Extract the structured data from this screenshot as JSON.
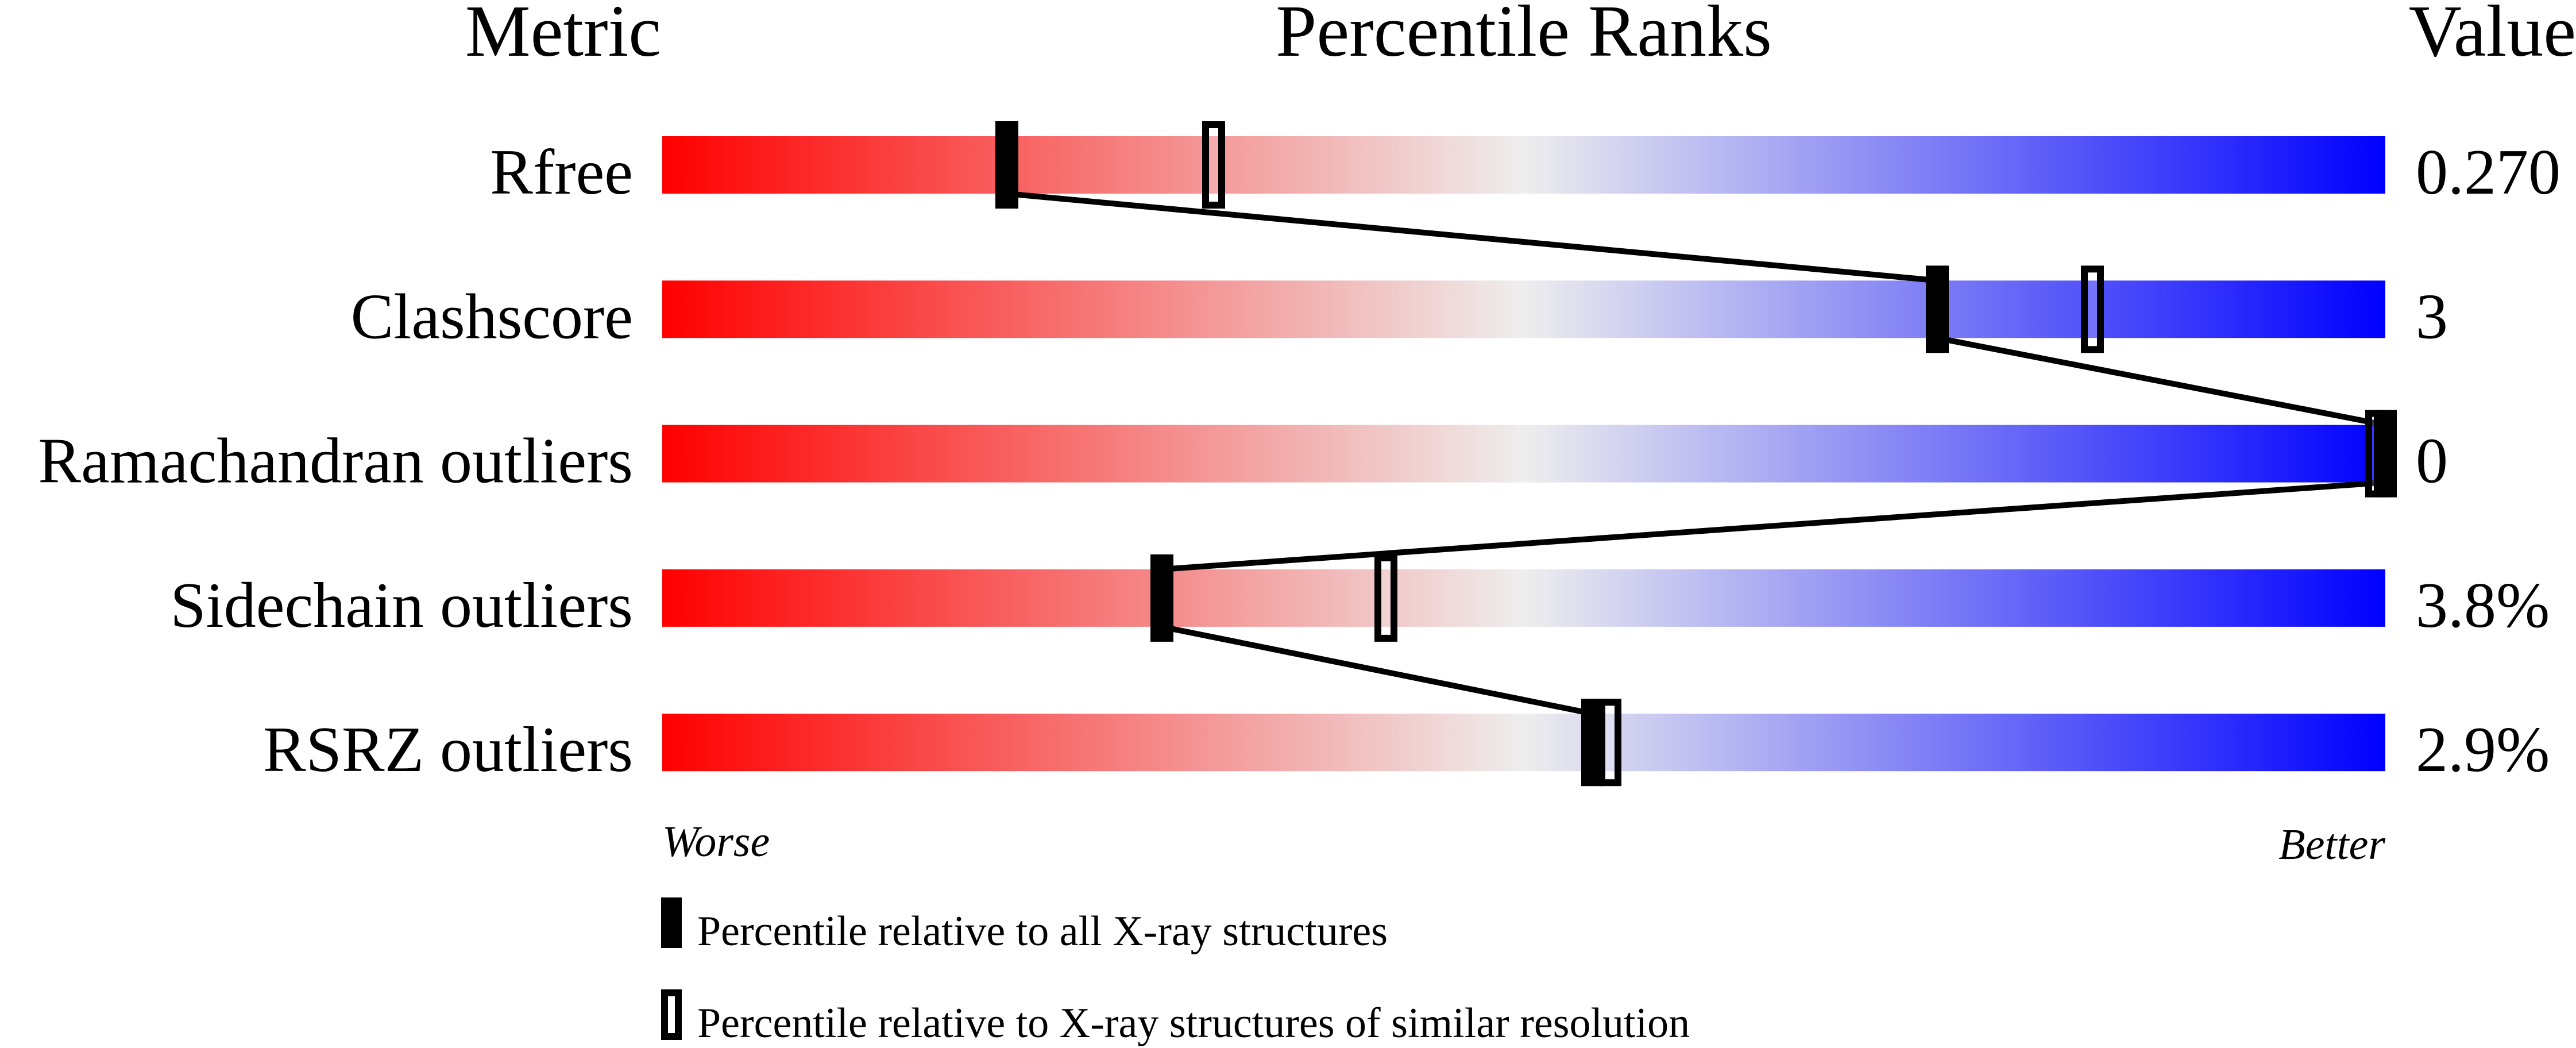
{
  "chart_data": {
    "type": "percentile-slider",
    "headers": {
      "metric": "Metric",
      "ranks": "Percentile Ranks",
      "value": "Value"
    },
    "axis": {
      "left": "Worse",
      "right": "Better",
      "range": [
        0,
        100
      ]
    },
    "colors": {
      "worse": "#ff0000",
      "middle": "#eeeeee",
      "better": "#0000ff",
      "marker": "#000000"
    },
    "metrics": [
      {
        "name": "Rfree",
        "value": "0.270",
        "percentile_all": 20,
        "percentile_similar": 32
      },
      {
        "name": "Clashscore",
        "value": "3",
        "percentile_all": 74,
        "percentile_similar": 83
      },
      {
        "name": "Ramachandran outliers",
        "value": "0",
        "percentile_all": 100,
        "percentile_similar": 100
      },
      {
        "name": "Sidechain outliers",
        "value": "3.8%",
        "percentile_all": 29,
        "percentile_similar": 42
      },
      {
        "name": "RSRZ outliers",
        "value": "2.9%",
        "percentile_all": 54,
        "percentile_similar": 55
      }
    ],
    "legend": [
      {
        "marker": "filled",
        "label": "Percentile relative to all X-ray structures"
      },
      {
        "marker": "open",
        "label": "Percentile relative to X-ray structures of similar resolution"
      }
    ]
  }
}
